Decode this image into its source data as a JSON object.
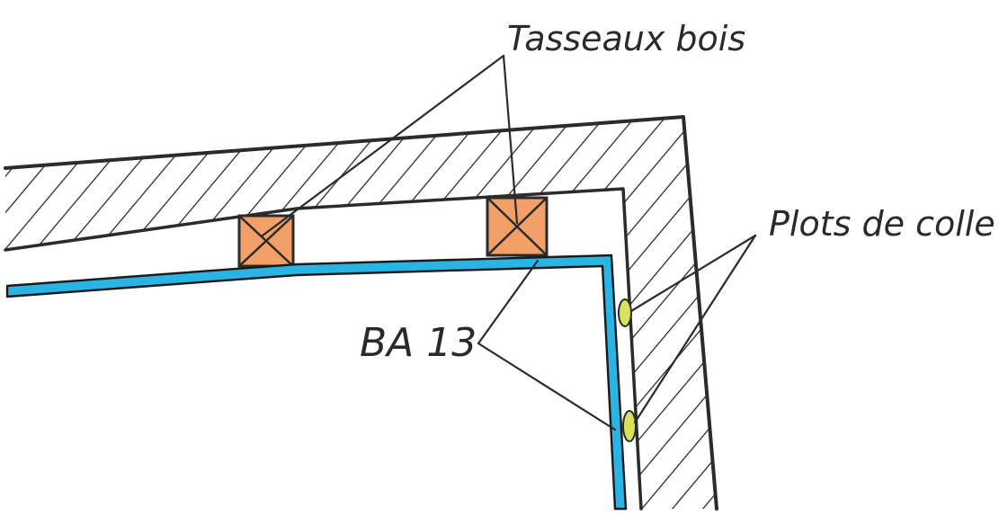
{
  "labels": {
    "battens": "Tasseaux bois",
    "glue": "Plots de colle",
    "board": "BA 13"
  },
  "colors": {
    "ink": "#2b2b2b",
    "batten_fill": "#f3a068",
    "plasterboard": "#29b4e3",
    "glue_dot": "#d9e35a",
    "paper": "#ffffff"
  }
}
